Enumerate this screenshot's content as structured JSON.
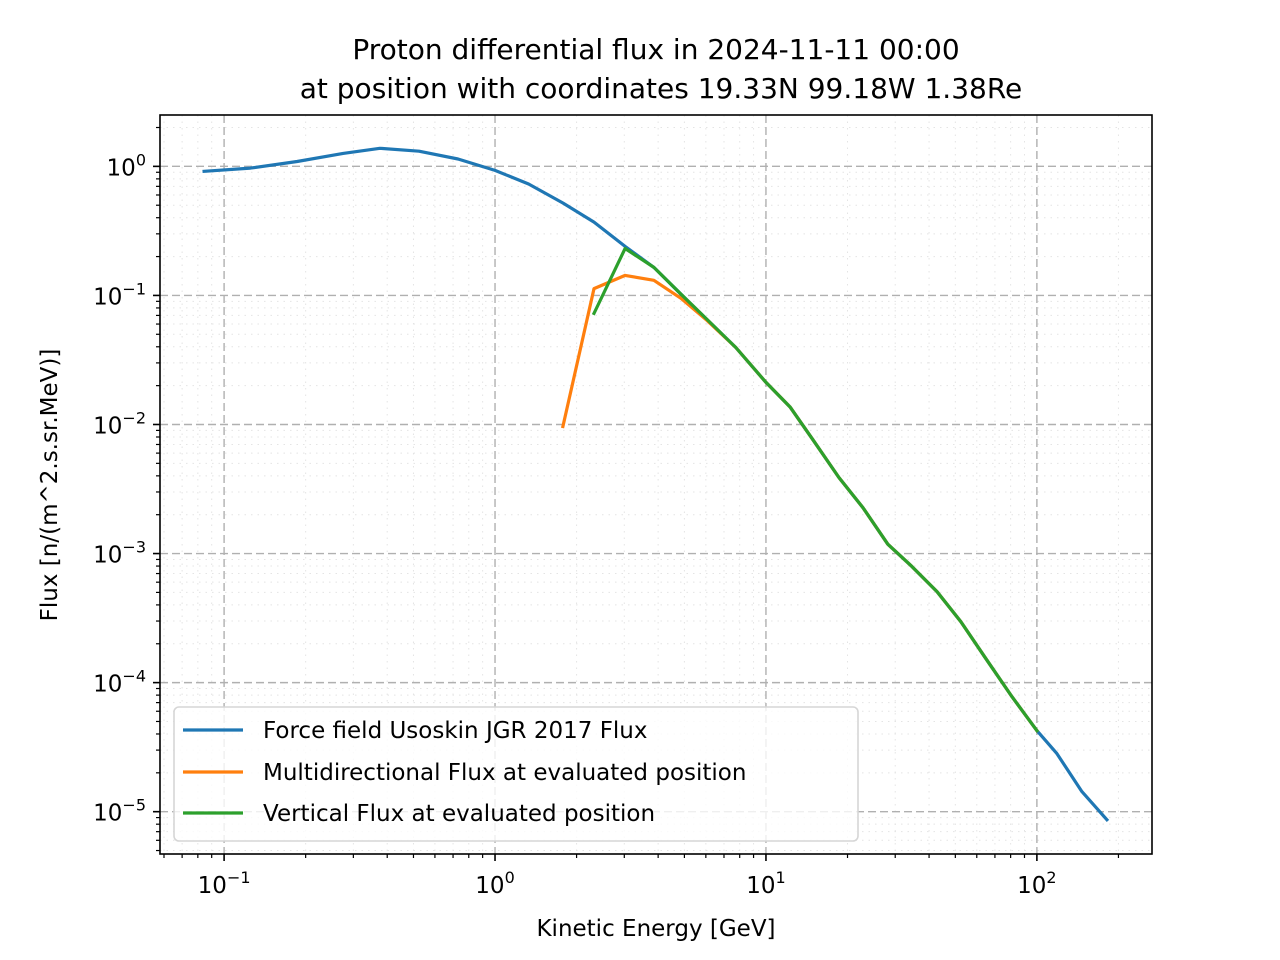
{
  "chart_data": {
    "type": "line",
    "title": "Proton differential flux in 2024-11-11 00:00",
    "subtitle": "at position with coordinates 19.33N 99.18W 1.38Re",
    "xlabel": "Kinetic Energy [GeV]",
    "ylabel": "Flux [n/(m^2.s.sr.MeV)]",
    "xscale": "log",
    "yscale": "log",
    "xlim": [
      0.058,
      266
    ],
    "ylim": [
      4.7e-06,
      2.5
    ],
    "grid": true,
    "minor_grid": true,
    "legend_position": "lower-left",
    "x_ticks": [
      {
        "base": "10",
        "exp": "−1",
        "value": 0.1
      },
      {
        "base": "10",
        "exp": "0",
        "value": 1
      },
      {
        "base": "10",
        "exp": "1",
        "value": 10
      },
      {
        "base": "10",
        "exp": "2",
        "value": 100
      }
    ],
    "y_ticks": [
      {
        "base": "10",
        "exp": "0",
        "value": 1
      },
      {
        "base": "10",
        "exp": "−1",
        "value": 0.1
      },
      {
        "base": "10",
        "exp": "−2",
        "value": 0.01
      },
      {
        "base": "10",
        "exp": "−3",
        "value": 0.001
      },
      {
        "base": "10",
        "exp": "−4",
        "value": 0.0001
      },
      {
        "base": "10",
        "exp": "−5",
        "value": 1e-05
      }
    ],
    "series": [
      {
        "name": "Force field Usoskin JGR 2017 Flux",
        "color": "#1f77b4",
        "x": [
          0.0844,
          0.125,
          0.186,
          0.275,
          0.376,
          0.524,
          0.73,
          1.0,
          1.33,
          1.78,
          2.32,
          3.02,
          3.86,
          4.86,
          6.06,
          7.74,
          10.0,
          12.3,
          14.8,
          18.6,
          22.8,
          28.2,
          34.6,
          42.8,
          52.4,
          64.9,
          80.9,
          100,
          118.5,
          146.6,
          181.3
        ],
        "y": [
          0.915,
          0.97,
          1.09,
          1.26,
          1.38,
          1.31,
          1.14,
          0.93,
          0.73,
          0.52,
          0.37,
          0.24,
          0.165,
          0.102,
          0.065,
          0.0395,
          0.0212,
          0.0136,
          0.00778,
          0.00388,
          0.00227,
          0.00118,
          0.000793,
          0.000507,
          0.000297,
          0.000153,
          7.79e-05,
          4.25e-05,
          2.82e-05,
          1.43e-05,
          8.67e-06
        ]
      },
      {
        "name": "Multidirectional Flux at evaluated position",
        "color": "#ff7f0e",
        "x": [
          1.78,
          2.32,
          3.02,
          3.86,
          4.86,
          6.06,
          7.74,
          10.0,
          12.3,
          14.8,
          18.6,
          22.8,
          28.2,
          34.6,
          42.8,
          52.4,
          64.9,
          80.9,
          100
        ],
        "y": [
          0.00965,
          0.113,
          0.143,
          0.131,
          0.0948,
          0.064,
          0.0395,
          0.0212,
          0.0136,
          0.00778,
          0.00388,
          0.00227,
          0.00118,
          0.000793,
          0.000507,
          0.000297,
          0.000153,
          7.79e-05,
          4.25e-05
        ]
      },
      {
        "name": "Vertical Flux at evaluated position",
        "color": "#2ca02c",
        "x": [
          2.32,
          3.02,
          3.86,
          4.86,
          6.06,
          7.74,
          10.0,
          12.3,
          14.8,
          18.6,
          22.8,
          28.2,
          34.6,
          42.8,
          52.4,
          64.9,
          80.9,
          100
        ],
        "y": [
          0.0725,
          0.231,
          0.165,
          0.102,
          0.0652,
          0.0395,
          0.0212,
          0.0136,
          0.00778,
          0.00388,
          0.00227,
          0.00118,
          0.000793,
          0.000507,
          0.000297,
          0.000153,
          7.79e-05,
          4.25e-05
        ]
      }
    ]
  }
}
